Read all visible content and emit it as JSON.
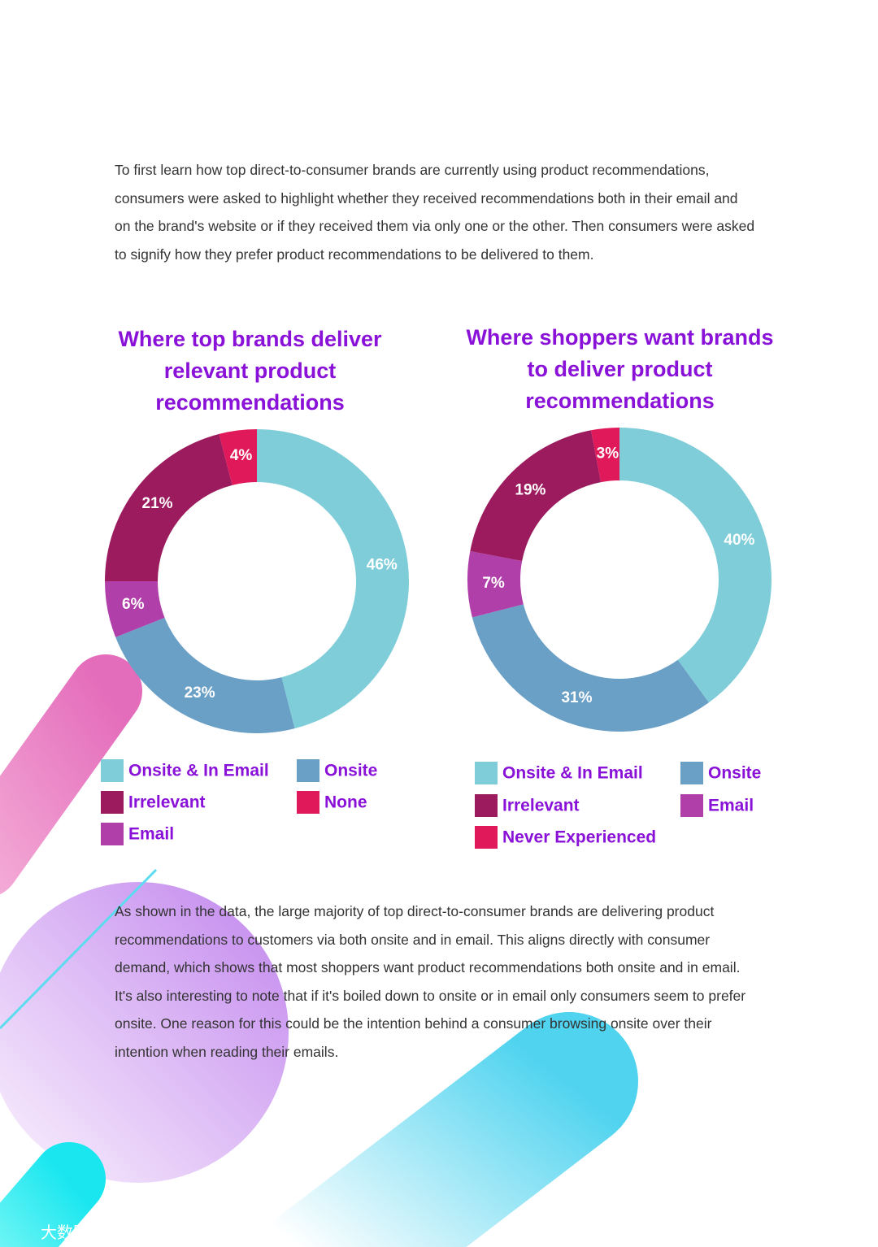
{
  "intro": "To first learn how top direct-to-consumer brands are currently using product recommendations, consumers were asked to highlight whether they received recommendations both in their email and on the brand's website or if they received them via only one or the other. Then consumers were asked to signify how they prefer product recommendations to be delivered to them.",
  "chart_data": [
    {
      "type": "pie",
      "title": "Where top brands deliver relevant product recommendations",
      "categories": [
        "Onsite & In Email",
        "Onsite",
        "Email",
        "Irrelevant",
        "None"
      ],
      "values": [
        46,
        23,
        6,
        21,
        4
      ],
      "value_labels": [
        "46%",
        "23%",
        "6%",
        "21%",
        "4%"
      ],
      "colors": [
        "#7ecdd8",
        "#6a9fc6",
        "#b13fa9",
        "#9c1a5e",
        "#e0195a"
      ]
    },
    {
      "type": "pie",
      "title": "Where shoppers want brands to deliver product recommendations",
      "categories": [
        "Onsite & In Email",
        "Onsite",
        "Email",
        "Irrelevant",
        "Never Experienced"
      ],
      "values": [
        40,
        31,
        7,
        19,
        3
      ],
      "value_labels": [
        "40%",
        "31%",
        "7%",
        "19%",
        "3%"
      ],
      "colors": [
        "#7ecdd8",
        "#6a9fc6",
        "#b13fa9",
        "#9c1a5e",
        "#e0195a"
      ]
    }
  ],
  "body": "As shown in the data, the large majority of top direct-to-consumer brands are delivering product recommendations to customers via both onsite and in email. This aligns directly with consumer demand, which shows that most shoppers want product recommendations both onsite and in email. It's also interesting to note that if it's boiled down to onsite or in email only consumers seem to prefer onsite. One reason for this could be the intention behind a consumer browsing onsite over their intention when reading their emails.",
  "watermark": "大数跨境"
}
